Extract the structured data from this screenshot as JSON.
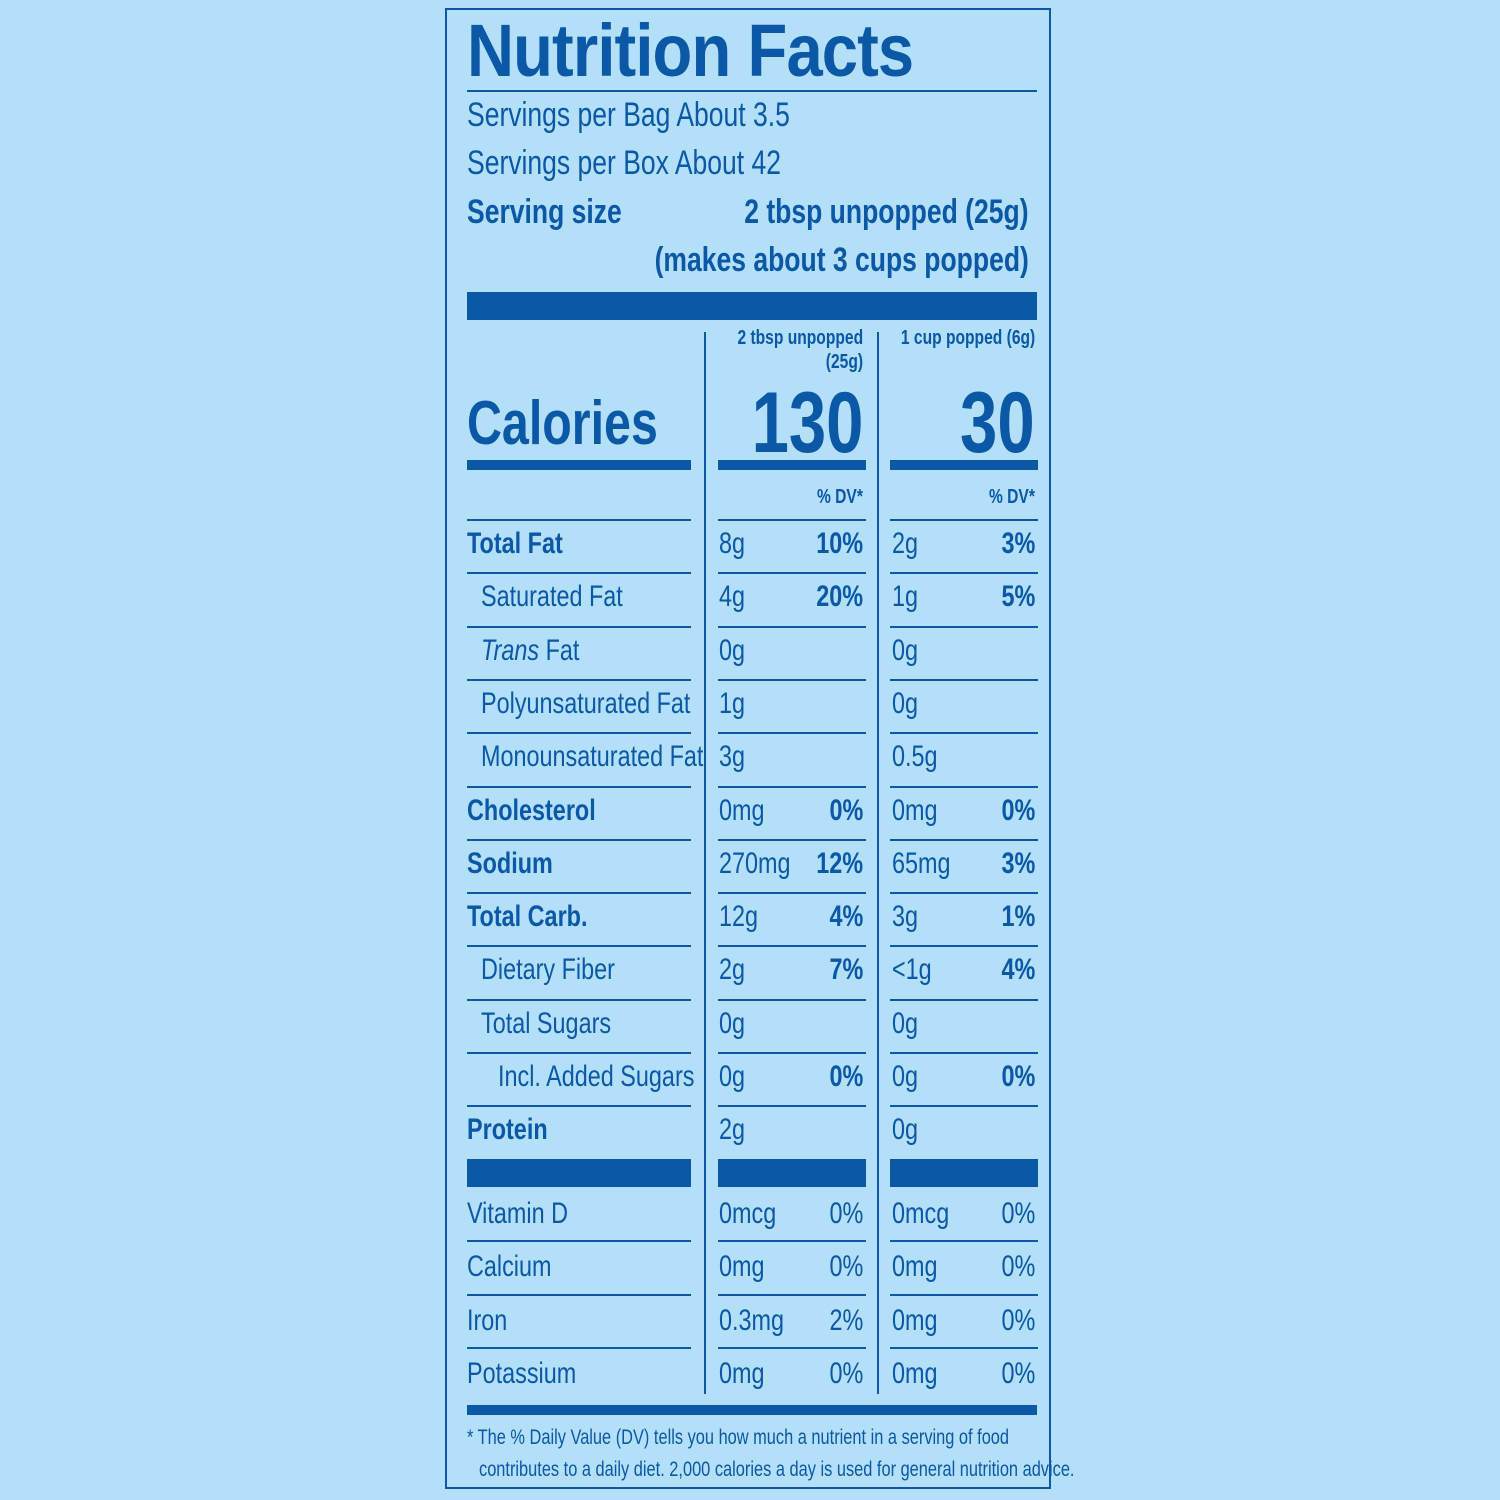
{
  "title": "Nutrition Facts",
  "servings_bag": "Servings per Bag About 3.5",
  "servings_box": "Servings per Box About 42",
  "serving_size_label": "Serving size",
  "serving_size_value": "2 tbsp unpopped (25g)",
  "serving_size_note": "(makes about 3 cups popped)",
  "col1_header_line1": "2 tbsp unpopped",
  "col1_header_line2": "(25g)",
  "col2_header": "1 cup popped (6g)",
  "calories_label": "Calories",
  "calories_col1": "130",
  "calories_col2": "30",
  "dv_header": "% DV*",
  "nutrients": [
    {
      "name": "Total Fat",
      "amt1": "8g",
      "dv1": "10%",
      "amt2": "2g",
      "dv2": "3%"
    },
    {
      "name": "Saturated Fat",
      "amt1": "4g",
      "dv1": "20%",
      "amt2": "1g",
      "dv2": "5%"
    },
    {
      "name_italic": "Trans",
      "name_rest": " Fat",
      "amt1": "0g",
      "dv1": "",
      "amt2": "0g",
      "dv2": ""
    },
    {
      "name": "Polyunsaturated Fat",
      "amt1": "1g",
      "dv1": "",
      "amt2": "0g",
      "dv2": ""
    },
    {
      "name": "Monounsaturated Fat",
      "amt1": "3g",
      "dv1": "",
      "amt2": "0.5g",
      "dv2": ""
    },
    {
      "name": "Cholesterol",
      "amt1": "0mg",
      "dv1": "0%",
      "amt2": "0mg",
      "dv2": "0%"
    },
    {
      "name": "Sodium",
      "amt1": "270mg",
      "dv1": "12%",
      "amt2": "65mg",
      "dv2": "3%"
    },
    {
      "name": "Total Carb.",
      "amt1": "12g",
      "dv1": "4%",
      "amt2": "3g",
      "dv2": "1%"
    },
    {
      "name": "Dietary Fiber",
      "amt1": "2g",
      "dv1": "7%",
      "amt2": "<1g",
      "dv2": "4%"
    },
    {
      "name": "Total Sugars",
      "amt1": "0g",
      "dv1": "",
      "amt2": "0g",
      "dv2": ""
    },
    {
      "name": "Incl. Added Sugars",
      "amt1": "0g",
      "dv1": "0%",
      "amt2": "0g",
      "dv2": "0%"
    },
    {
      "name": "Protein",
      "amt1": "2g",
      "dv1": "",
      "amt2": "0g",
      "dv2": ""
    }
  ],
  "vitamins": [
    {
      "name": "Vitamin D",
      "amt1": "0mcg",
      "dv1": "0%",
      "amt2": "0mcg",
      "dv2": "0%"
    },
    {
      "name": "Calcium",
      "amt1": "0mg",
      "dv1": "0%",
      "amt2": "0mg",
      "dv2": "0%"
    },
    {
      "name": "Iron",
      "amt1": "0.3mg",
      "dv1": "2%",
      "amt2": "0mg",
      "dv2": "0%"
    },
    {
      "name": "Potassium",
      "amt1": "0mg",
      "dv1": "0%",
      "amt2": "0mg",
      "dv2": "0%"
    }
  ],
  "footnote_line1": "* The % Daily Value (DV) tells you how much a nutrient in a serving of food",
  "footnote_line2": "contributes to a daily diet. 2,000 calories a day is used for general nutrition advice.",
  "colors": {
    "background": "#b3dff8",
    "ink": "#0a58a6"
  }
}
